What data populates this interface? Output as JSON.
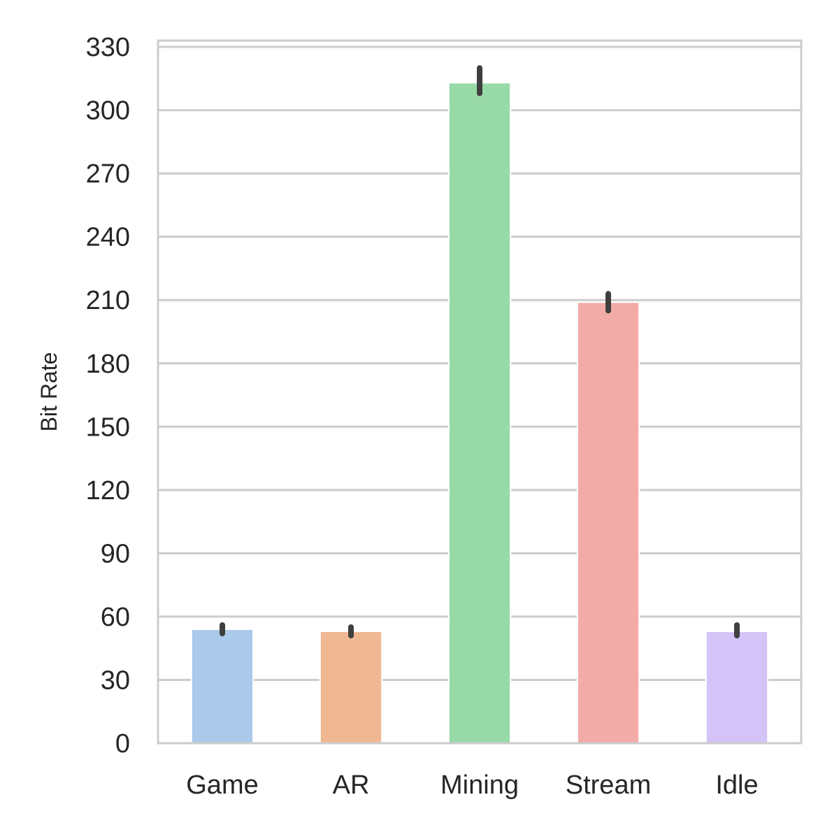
{
  "chart_data": {
    "type": "bar",
    "categories": [
      "Game",
      "AR",
      "Mining",
      "Stream",
      "Idle"
    ],
    "values": [
      54,
      53,
      313,
      209,
      53
    ],
    "error_bars": [
      [
        52,
        56
      ],
      [
        51,
        55
      ],
      [
        308,
        320
      ],
      [
        205,
        213
      ],
      [
        51,
        56
      ]
    ],
    "colors": [
      "#abc9ea",
      "#efb792",
      "#98daa7",
      "#f3aba8",
      "#d3c3f7"
    ],
    "error_color": "#3f3f3f",
    "title": "",
    "xlabel": "",
    "ylabel": "Bit Rate",
    "ylim": [
      0,
      333
    ],
    "yticks": [
      0,
      30,
      60,
      90,
      120,
      150,
      180,
      210,
      240,
      270,
      300,
      330
    ],
    "grid": true,
    "legend": "none"
  }
}
